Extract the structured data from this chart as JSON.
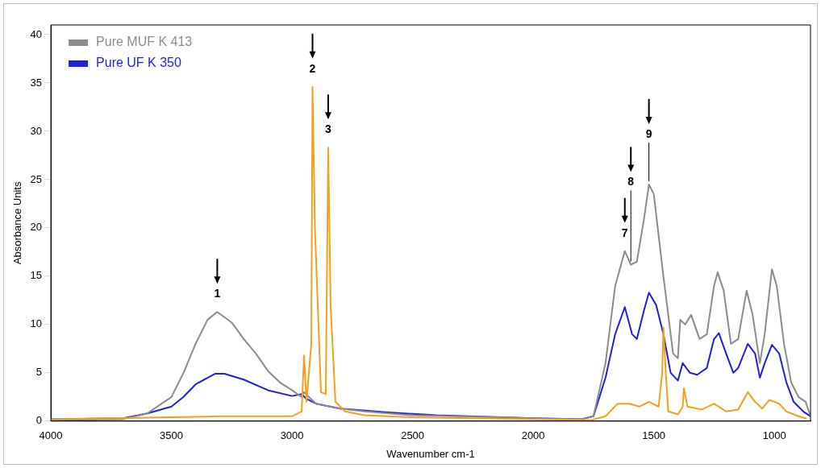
{
  "chart_data": {
    "type": "line",
    "xlabel": "Wavenumber cm-1",
    "ylabel": "Absorbance Units",
    "xlim": [
      4000,
      850
    ],
    "xticks": [
      4000,
      3500,
      3000,
      2500,
      2000,
      1500,
      1000
    ],
    "ylim": [
      0,
      41
    ],
    "yticks": [
      0,
      5,
      10,
      15,
      20,
      25,
      30,
      35,
      40
    ],
    "grid": false,
    "legend": "top left",
    "marker": "none",
    "line_style": "solid",
    "series": [
      {
        "color": "#f5a01a",
        "x": [
          4000,
          3500,
          3300,
          3000,
          2960,
          2950,
          2940,
          2920,
          2915,
          2905,
          2880,
          2860,
          2850,
          2840,
          2820,
          2780,
          2700,
          2500,
          2000,
          1760,
          1700,
          1650,
          1600,
          1560,
          1520,
          1480,
          1465,
          1460,
          1450,
          1440,
          1400,
          1380,
          1375,
          1360,
          1300,
          1250,
          1200,
          1150,
          1110,
          1080,
          1050,
          1020,
          980,
          950,
          900,
          870
        ],
        "values": [
          0.2,
          0.4,
          0.5,
          0.5,
          1,
          6.8,
          2,
          8,
          34.6,
          20,
          3,
          2.8,
          28.3,
          12,
          2,
          1,
          0.6,
          0.4,
          0.2,
          0.1,
          0.5,
          1.8,
          1.8,
          1.5,
          2,
          1.5,
          5,
          9.7,
          5,
          1,
          0.7,
          1.5,
          3.4,
          1.5,
          1.2,
          1.8,
          1,
          1.2,
          3,
          2,
          1.3,
          2.2,
          1.8,
          1,
          0.5,
          0.3
        ]
      },
      {
        "name": "Pure MUF K 413",
        "color": "#8c8c8c",
        "x": [
          4000,
          3700,
          3600,
          3500,
          3450,
          3400,
          3350,
          3310,
          3250,
          3200,
          3150,
          3100,
          3050,
          3000,
          2960,
          2950,
          2930,
          2900,
          2800,
          2700,
          2500,
          2000,
          1800,
          1750,
          1700,
          1660,
          1620,
          1595,
          1570,
          1540,
          1520,
          1500,
          1460,
          1420,
          1400,
          1390,
          1370,
          1345,
          1310,
          1280,
          1250,
          1235,
          1210,
          1180,
          1150,
          1115,
          1090,
          1060,
          1040,
          1010,
          990,
          960,
          930,
          900,
          870,
          850
        ],
        "values": [
          0.1,
          0.2,
          0.8,
          2.5,
          5,
          8,
          10.5,
          11.3,
          10.2,
          8.5,
          7,
          5.2,
          4,
          3.2,
          2.5,
          3,
          2.5,
          1.8,
          1.3,
          1,
          0.6,
          0.3,
          0.2,
          0.5,
          6,
          14,
          17.6,
          16.2,
          16.5,
          21,
          24.5,
          23.5,
          15,
          7,
          6.5,
          10.5,
          10,
          11,
          8.5,
          9,
          14,
          15.4,
          13.5,
          8,
          8.5,
          13.5,
          11,
          6,
          9,
          15.7,
          14,
          8,
          4,
          2.5,
          2,
          0.5
        ]
      },
      {
        "name": "Pure UF K 350",
        "color": "#1f1fe0",
        "x": [
          4000,
          3700,
          3600,
          3500,
          3450,
          3400,
          3320,
          3280,
          3200,
          3100,
          3000,
          2960,
          2940,
          2900,
          2800,
          2600,
          2400,
          2000,
          1800,
          1750,
          1700,
          1660,
          1620,
          1590,
          1570,
          1540,
          1520,
          1490,
          1460,
          1430,
          1400,
          1380,
          1350,
          1320,
          1280,
          1250,
          1230,
          1200,
          1170,
          1150,
          1110,
          1080,
          1060,
          1040,
          1010,
          980,
          950,
          920,
          880,
          850
        ],
        "values": [
          0.2,
          0.3,
          0.8,
          1.5,
          2.5,
          3.8,
          4.9,
          4.9,
          4.3,
          3.2,
          2.6,
          2.8,
          2.3,
          1.8,
          1.3,
          0.9,
          0.6,
          0.3,
          0.2,
          0.5,
          4.5,
          9,
          11.8,
          9,
          8.5,
          11.5,
          13.3,
          12,
          9,
          5,
          4.2,
          6,
          5,
          4.8,
          5.5,
          8.5,
          9.1,
          7,
          5,
          5.5,
          8,
          7,
          4.5,
          6,
          7.9,
          7,
          4,
          2,
          1,
          0.5
        ]
      }
    ],
    "annotations": [
      {
        "text": "1",
        "x": 3310,
        "y": 11.3
      },
      {
        "text": "2",
        "x": 2915,
        "y": 34.6
      },
      {
        "text": "3",
        "x": 2850,
        "y": 28.3
      },
      {
        "text": "7",
        "x": 1620,
        "y": 17.6
      },
      {
        "text": "8",
        "x": 1595,
        "y": 16.2
      },
      {
        "text": "9",
        "x": 1520,
        "y": 24.5
      }
    ]
  }
}
